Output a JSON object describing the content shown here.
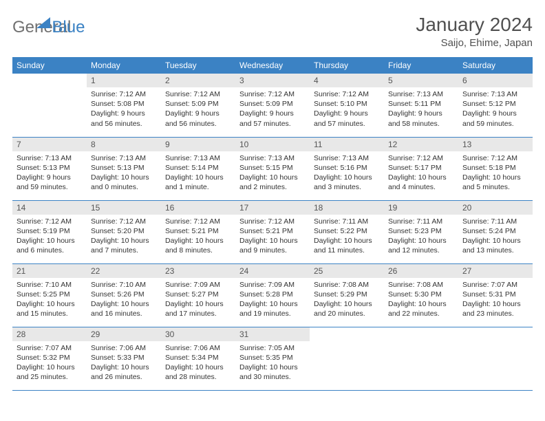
{
  "logo": {
    "word1": "General",
    "word2": "Blue"
  },
  "header": {
    "title": "January 2024",
    "subtitle": "Saijo, Ehime, Japan"
  },
  "colors": {
    "header_bg": "#3b82c4",
    "header_fg": "#ffffff",
    "daynum_bg": "#e8e8e8",
    "text": "#333333",
    "logo_gray": "#707070",
    "logo_blue": "#3b82c4",
    "row_border": "#3b82c4"
  },
  "typography": {
    "title_fontsize": 28,
    "subtitle_fontsize": 15,
    "dayheader_fontsize": 12,
    "daynum_fontsize": 12,
    "body_fontsize": 10.5
  },
  "day_headers": [
    "Sunday",
    "Monday",
    "Tuesday",
    "Wednesday",
    "Thursday",
    "Friday",
    "Saturday"
  ],
  "weeks": [
    [
      {
        "n": "",
        "sr": "",
        "ss": "",
        "dl": "",
        "empty": true
      },
      {
        "n": "1",
        "sr": "Sunrise: 7:12 AM",
        "ss": "Sunset: 5:08 PM",
        "dl": "Daylight: 9 hours and 56 minutes."
      },
      {
        "n": "2",
        "sr": "Sunrise: 7:12 AM",
        "ss": "Sunset: 5:09 PM",
        "dl": "Daylight: 9 hours and 56 minutes."
      },
      {
        "n": "3",
        "sr": "Sunrise: 7:12 AM",
        "ss": "Sunset: 5:09 PM",
        "dl": "Daylight: 9 hours and 57 minutes."
      },
      {
        "n": "4",
        "sr": "Sunrise: 7:12 AM",
        "ss": "Sunset: 5:10 PM",
        "dl": "Daylight: 9 hours and 57 minutes."
      },
      {
        "n": "5",
        "sr": "Sunrise: 7:13 AM",
        "ss": "Sunset: 5:11 PM",
        "dl": "Daylight: 9 hours and 58 minutes."
      },
      {
        "n": "6",
        "sr": "Sunrise: 7:13 AM",
        "ss": "Sunset: 5:12 PM",
        "dl": "Daylight: 9 hours and 59 minutes."
      }
    ],
    [
      {
        "n": "7",
        "sr": "Sunrise: 7:13 AM",
        "ss": "Sunset: 5:13 PM",
        "dl": "Daylight: 9 hours and 59 minutes."
      },
      {
        "n": "8",
        "sr": "Sunrise: 7:13 AM",
        "ss": "Sunset: 5:13 PM",
        "dl": "Daylight: 10 hours and 0 minutes."
      },
      {
        "n": "9",
        "sr": "Sunrise: 7:13 AM",
        "ss": "Sunset: 5:14 PM",
        "dl": "Daylight: 10 hours and 1 minute."
      },
      {
        "n": "10",
        "sr": "Sunrise: 7:13 AM",
        "ss": "Sunset: 5:15 PM",
        "dl": "Daylight: 10 hours and 2 minutes."
      },
      {
        "n": "11",
        "sr": "Sunrise: 7:13 AM",
        "ss": "Sunset: 5:16 PM",
        "dl": "Daylight: 10 hours and 3 minutes."
      },
      {
        "n": "12",
        "sr": "Sunrise: 7:12 AM",
        "ss": "Sunset: 5:17 PM",
        "dl": "Daylight: 10 hours and 4 minutes."
      },
      {
        "n": "13",
        "sr": "Sunrise: 7:12 AM",
        "ss": "Sunset: 5:18 PM",
        "dl": "Daylight: 10 hours and 5 minutes."
      }
    ],
    [
      {
        "n": "14",
        "sr": "Sunrise: 7:12 AM",
        "ss": "Sunset: 5:19 PM",
        "dl": "Daylight: 10 hours and 6 minutes."
      },
      {
        "n": "15",
        "sr": "Sunrise: 7:12 AM",
        "ss": "Sunset: 5:20 PM",
        "dl": "Daylight: 10 hours and 7 minutes."
      },
      {
        "n": "16",
        "sr": "Sunrise: 7:12 AM",
        "ss": "Sunset: 5:21 PM",
        "dl": "Daylight: 10 hours and 8 minutes."
      },
      {
        "n": "17",
        "sr": "Sunrise: 7:12 AM",
        "ss": "Sunset: 5:21 PM",
        "dl": "Daylight: 10 hours and 9 minutes."
      },
      {
        "n": "18",
        "sr": "Sunrise: 7:11 AM",
        "ss": "Sunset: 5:22 PM",
        "dl": "Daylight: 10 hours and 11 minutes."
      },
      {
        "n": "19",
        "sr": "Sunrise: 7:11 AM",
        "ss": "Sunset: 5:23 PM",
        "dl": "Daylight: 10 hours and 12 minutes."
      },
      {
        "n": "20",
        "sr": "Sunrise: 7:11 AM",
        "ss": "Sunset: 5:24 PM",
        "dl": "Daylight: 10 hours and 13 minutes."
      }
    ],
    [
      {
        "n": "21",
        "sr": "Sunrise: 7:10 AM",
        "ss": "Sunset: 5:25 PM",
        "dl": "Daylight: 10 hours and 15 minutes."
      },
      {
        "n": "22",
        "sr": "Sunrise: 7:10 AM",
        "ss": "Sunset: 5:26 PM",
        "dl": "Daylight: 10 hours and 16 minutes."
      },
      {
        "n": "23",
        "sr": "Sunrise: 7:09 AM",
        "ss": "Sunset: 5:27 PM",
        "dl": "Daylight: 10 hours and 17 minutes."
      },
      {
        "n": "24",
        "sr": "Sunrise: 7:09 AM",
        "ss": "Sunset: 5:28 PM",
        "dl": "Daylight: 10 hours and 19 minutes."
      },
      {
        "n": "25",
        "sr": "Sunrise: 7:08 AM",
        "ss": "Sunset: 5:29 PM",
        "dl": "Daylight: 10 hours and 20 minutes."
      },
      {
        "n": "26",
        "sr": "Sunrise: 7:08 AM",
        "ss": "Sunset: 5:30 PM",
        "dl": "Daylight: 10 hours and 22 minutes."
      },
      {
        "n": "27",
        "sr": "Sunrise: 7:07 AM",
        "ss": "Sunset: 5:31 PM",
        "dl": "Daylight: 10 hours and 23 minutes."
      }
    ],
    [
      {
        "n": "28",
        "sr": "Sunrise: 7:07 AM",
        "ss": "Sunset: 5:32 PM",
        "dl": "Daylight: 10 hours and 25 minutes."
      },
      {
        "n": "29",
        "sr": "Sunrise: 7:06 AM",
        "ss": "Sunset: 5:33 PM",
        "dl": "Daylight: 10 hours and 26 minutes."
      },
      {
        "n": "30",
        "sr": "Sunrise: 7:06 AM",
        "ss": "Sunset: 5:34 PM",
        "dl": "Daylight: 10 hours and 28 minutes."
      },
      {
        "n": "31",
        "sr": "Sunrise: 7:05 AM",
        "ss": "Sunset: 5:35 PM",
        "dl": "Daylight: 10 hours and 30 minutes."
      },
      {
        "n": "",
        "sr": "",
        "ss": "",
        "dl": "",
        "empty": true
      },
      {
        "n": "",
        "sr": "",
        "ss": "",
        "dl": "",
        "empty": true
      },
      {
        "n": "",
        "sr": "",
        "ss": "",
        "dl": "",
        "empty": true
      }
    ]
  ]
}
